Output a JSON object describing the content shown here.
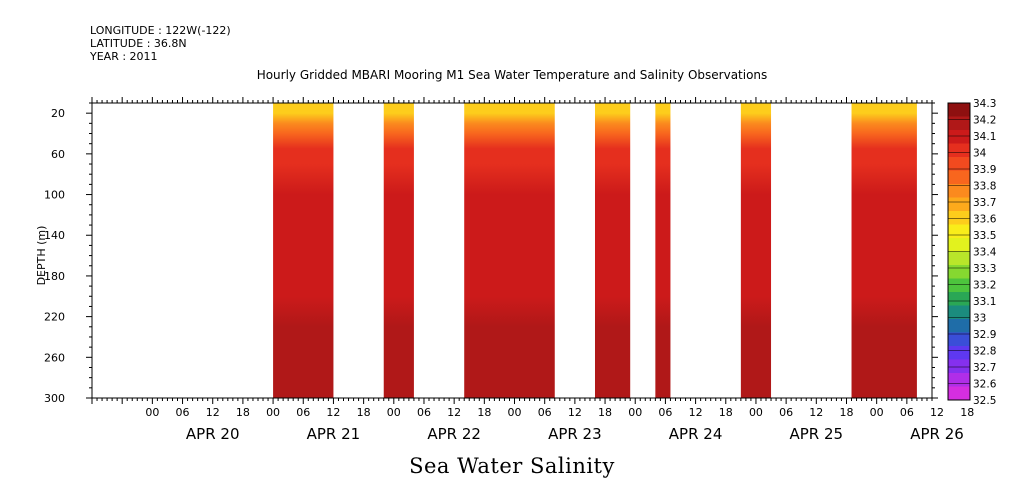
{
  "header": {
    "longitude": "LONGITUDE : 122W(-122)",
    "latitude": "LATITUDE : 36.8N",
    "year": "YEAR : 2011"
  },
  "chart_data": {
    "type": "heatmap",
    "title": "Hourly Gridded MBARI Mooring M1 Sea Water Temperature and Salinity Observations",
    "xlabel": "Sea Water Salinity",
    "ylabel": "DEPTH (m)",
    "ylim": [
      300,
      10
    ],
    "y_ticks": [
      20,
      60,
      100,
      140,
      180,
      220,
      260,
      300
    ],
    "x_range_hours": [
      -12,
      155
    ],
    "x_hour_ticks": [
      "00",
      "06",
      "12",
      "18",
      "00",
      "06",
      "12",
      "18",
      "00",
      "06",
      "12",
      "18",
      "00",
      "06",
      "12",
      "18",
      "00",
      "06",
      "12",
      "18",
      "00",
      "06",
      "12",
      "18",
      "00",
      "06",
      "12",
      "18"
    ],
    "x_days": [
      "APR 20",
      "APR 21",
      "APR 22",
      "APR 23",
      "APR 24",
      "APR 25",
      "APR 26"
    ],
    "data_segments": [
      {
        "start_hour": 24,
        "end_hour": 36
      },
      {
        "start_hour": 46,
        "end_hour": 52
      },
      {
        "start_hour": 62,
        "end_hour": 80
      },
      {
        "start_hour": 88,
        "end_hour": 95
      },
      {
        "start_hour": 100,
        "end_hour": 103
      },
      {
        "start_hour": 117,
        "end_hour": 123
      },
      {
        "start_hour": 139,
        "end_hour": 152
      }
    ],
    "depth_profile": [
      {
        "depth": 10,
        "value": 33.6
      },
      {
        "depth": 20,
        "value": 33.6
      },
      {
        "depth": 30,
        "value": 33.8
      },
      {
        "depth": 40,
        "value": 33.9
      },
      {
        "depth": 55,
        "value": 34.0
      },
      {
        "depth": 70,
        "value": 34.05
      },
      {
        "depth": 100,
        "value": 34.1
      },
      {
        "depth": 140,
        "value": 34.15
      },
      {
        "depth": 200,
        "value": 34.15
      },
      {
        "depth": 230,
        "value": 34.2
      },
      {
        "depth": 260,
        "value": 34.25
      },
      {
        "depth": 300,
        "value": 34.2
      }
    ],
    "colorbar": {
      "labels": [
        "34.3",
        "34.2",
        "34.1",
        "34",
        "33.9",
        "33.8",
        "33.7",
        "33.6",
        "33.5",
        "33.4",
        "33.3",
        "33.2",
        "33.1",
        "33",
        "32.9",
        "32.8",
        "32.7",
        "32.6",
        "32.5"
      ],
      "colors": [
        "#8e1010",
        "#b01818",
        "#cc1a1a",
        "#e52f1e",
        "#f24a1f",
        "#f8661e",
        "#fb8a1e",
        "#fdaa1c",
        "#fdcd1c",
        "#f9ed1a",
        "#e2f21e",
        "#b9e62a",
        "#86d830",
        "#4dc43d",
        "#2aa755",
        "#1b8c7e",
        "#1f6da8",
        "#3a4ed8",
        "#5e38f0",
        "#8530ee",
        "#b02ee8",
        "#d52ee0"
      ]
    }
  }
}
